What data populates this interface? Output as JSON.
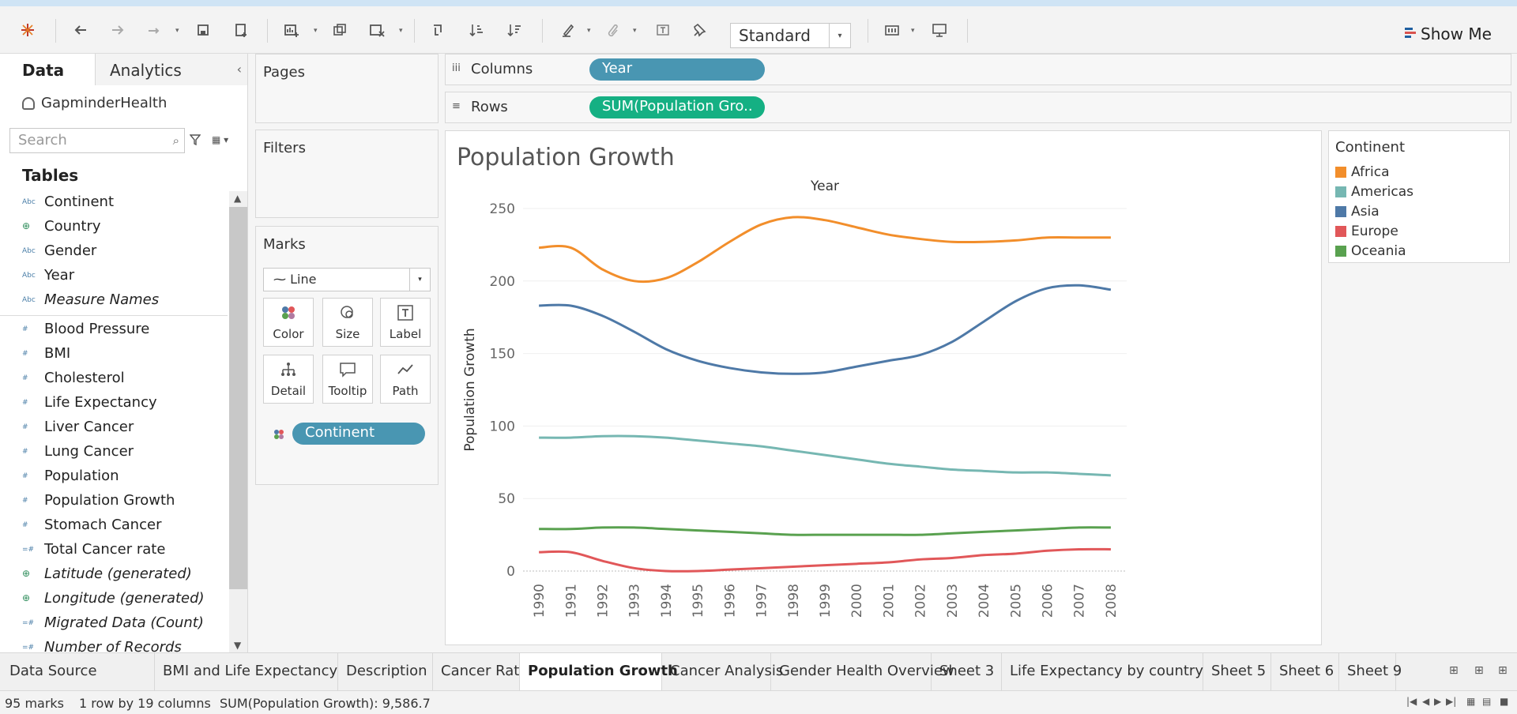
{
  "toolbar": {
    "fit_value": "Standard",
    "show_me_label": "Show Me"
  },
  "data_pane": {
    "tab_data": "Data",
    "tab_analytics": "Analytics",
    "datasource": "GapminderHealth",
    "search_placeholder": "Search",
    "tables_heading": "Tables",
    "dimensions": [
      {
        "type": "Abc",
        "label": "Continent",
        "italic": false
      },
      {
        "type": "geo",
        "label": "Country",
        "italic": false
      },
      {
        "type": "Abc",
        "label": "Gender",
        "italic": false
      },
      {
        "type": "Abc",
        "label": "Year",
        "italic": false
      },
      {
        "type": "Abc",
        "label": "Measure Names",
        "italic": true
      }
    ],
    "measures": [
      {
        "type": "#",
        "label": "Blood Pressure",
        "italic": false
      },
      {
        "type": "#",
        "label": "BMI",
        "italic": false
      },
      {
        "type": "#",
        "label": "Cholesterol",
        "italic": false
      },
      {
        "type": "#",
        "label": "Life Expectancy",
        "italic": false
      },
      {
        "type": "#",
        "label": "Liver Cancer",
        "italic": false
      },
      {
        "type": "#",
        "label": "Lung Cancer",
        "italic": false
      },
      {
        "type": "#",
        "label": "Population",
        "italic": false
      },
      {
        "type": "#",
        "label": "Population Growth",
        "italic": false
      },
      {
        "type": "#",
        "label": "Stomach Cancer",
        "italic": false
      },
      {
        "type": "=#",
        "label": "Total Cancer rate",
        "italic": false
      },
      {
        "type": "geo",
        "label": "Latitude (generated)",
        "italic": true
      },
      {
        "type": "geo",
        "label": "Longitude (generated)",
        "italic": true
      },
      {
        "type": "=#",
        "label": "Migrated Data (Count)",
        "italic": true
      },
      {
        "type": "=#",
        "label": "Number of Records",
        "italic": true
      }
    ]
  },
  "cards": {
    "pages_title": "Pages",
    "filters_title": "Filters",
    "marks_title": "Marks",
    "mark_type": "Line",
    "mark_buttons": [
      "Color",
      "Size",
      "Label",
      "Detail",
      "Tooltip",
      "Path"
    ],
    "marks_pill": "Continent"
  },
  "shelves": {
    "columns_label": "Columns",
    "columns_pill": "Year",
    "rows_label": "Rows",
    "rows_pill": "SUM(Population Gro.."
  },
  "view": {
    "sheet_title": "Population Growth"
  },
  "chart_data": {
    "type": "line",
    "title": "Population Growth",
    "x_header": "Year",
    "ylabel": "Population Growth",
    "ylim": [
      0,
      250
    ],
    "yticks": [
      0,
      50,
      100,
      150,
      200,
      250
    ],
    "x": [
      "1990",
      "1991",
      "1992",
      "1993",
      "1994",
      "1995",
      "1996",
      "1997",
      "1998",
      "1999",
      "2000",
      "2001",
      "2002",
      "2003",
      "2004",
      "2005",
      "2006",
      "2007",
      "2008"
    ],
    "series": [
      {
        "name": "Africa",
        "color": "#f28e2b",
        "values": [
          223,
          223,
          208,
          200,
          202,
          213,
          227,
          239,
          244,
          242,
          237,
          232,
          229,
          227,
          227,
          228,
          230,
          230,
          230
        ]
      },
      {
        "name": "Asia",
        "color": "#4e79a7",
        "values": [
          183,
          183,
          176,
          165,
          153,
          145,
          140,
          137,
          136,
          137,
          141,
          145,
          149,
          158,
          172,
          186,
          195,
          197,
          194
        ]
      },
      {
        "name": "Americas",
        "color": "#76b7b2",
        "values": [
          92,
          92,
          93,
          93,
          92,
          90,
          88,
          86,
          83,
          80,
          77,
          74,
          72,
          70,
          69,
          68,
          68,
          67,
          66
        ]
      },
      {
        "name": "Oceania",
        "color": "#59a14f",
        "values": [
          29,
          29,
          30,
          30,
          29,
          28,
          27,
          26,
          25,
          25,
          25,
          25,
          25,
          26,
          27,
          28,
          29,
          30,
          30
        ]
      },
      {
        "name": "Europe",
        "color": "#e15759",
        "values": [
          13,
          13,
          7,
          2,
          0,
          0,
          1,
          2,
          3,
          4,
          5,
          6,
          8,
          9,
          11,
          12,
          14,
          15,
          15
        ]
      }
    ],
    "grid": true
  },
  "legend": {
    "title": "Continent",
    "items": [
      {
        "label": "Africa",
        "color": "#f28e2b"
      },
      {
        "label": "Americas",
        "color": "#76b7b2"
      },
      {
        "label": "Asia",
        "color": "#4e79a7"
      },
      {
        "label": "Europe",
        "color": "#e15759"
      },
      {
        "label": "Oceania",
        "color": "#59a14f"
      }
    ]
  },
  "sheet_tabs": [
    {
      "label": "Data Source",
      "active": false
    },
    {
      "label": "BMI and Life Expectancy",
      "active": false
    },
    {
      "label": "Description",
      "active": false
    },
    {
      "label": "Cancer Rate",
      "active": false
    },
    {
      "label": "Population Growth",
      "active": true
    },
    {
      "label": "Cancer Analysis",
      "active": false
    },
    {
      "label": "Gender Health Overview",
      "active": false
    },
    {
      "label": "Sheet 3",
      "active": false
    },
    {
      "label": "Life Expectancy by country",
      "active": false
    },
    {
      "label": "Sheet 5",
      "active": false
    },
    {
      "label": "Sheet 6",
      "active": false
    },
    {
      "label": "Sheet 9",
      "active": false
    }
  ],
  "status": {
    "marks": "95 marks",
    "rows_cols": "1 row by 19 columns",
    "sum": "SUM(Population Growth): 9,586.7"
  }
}
